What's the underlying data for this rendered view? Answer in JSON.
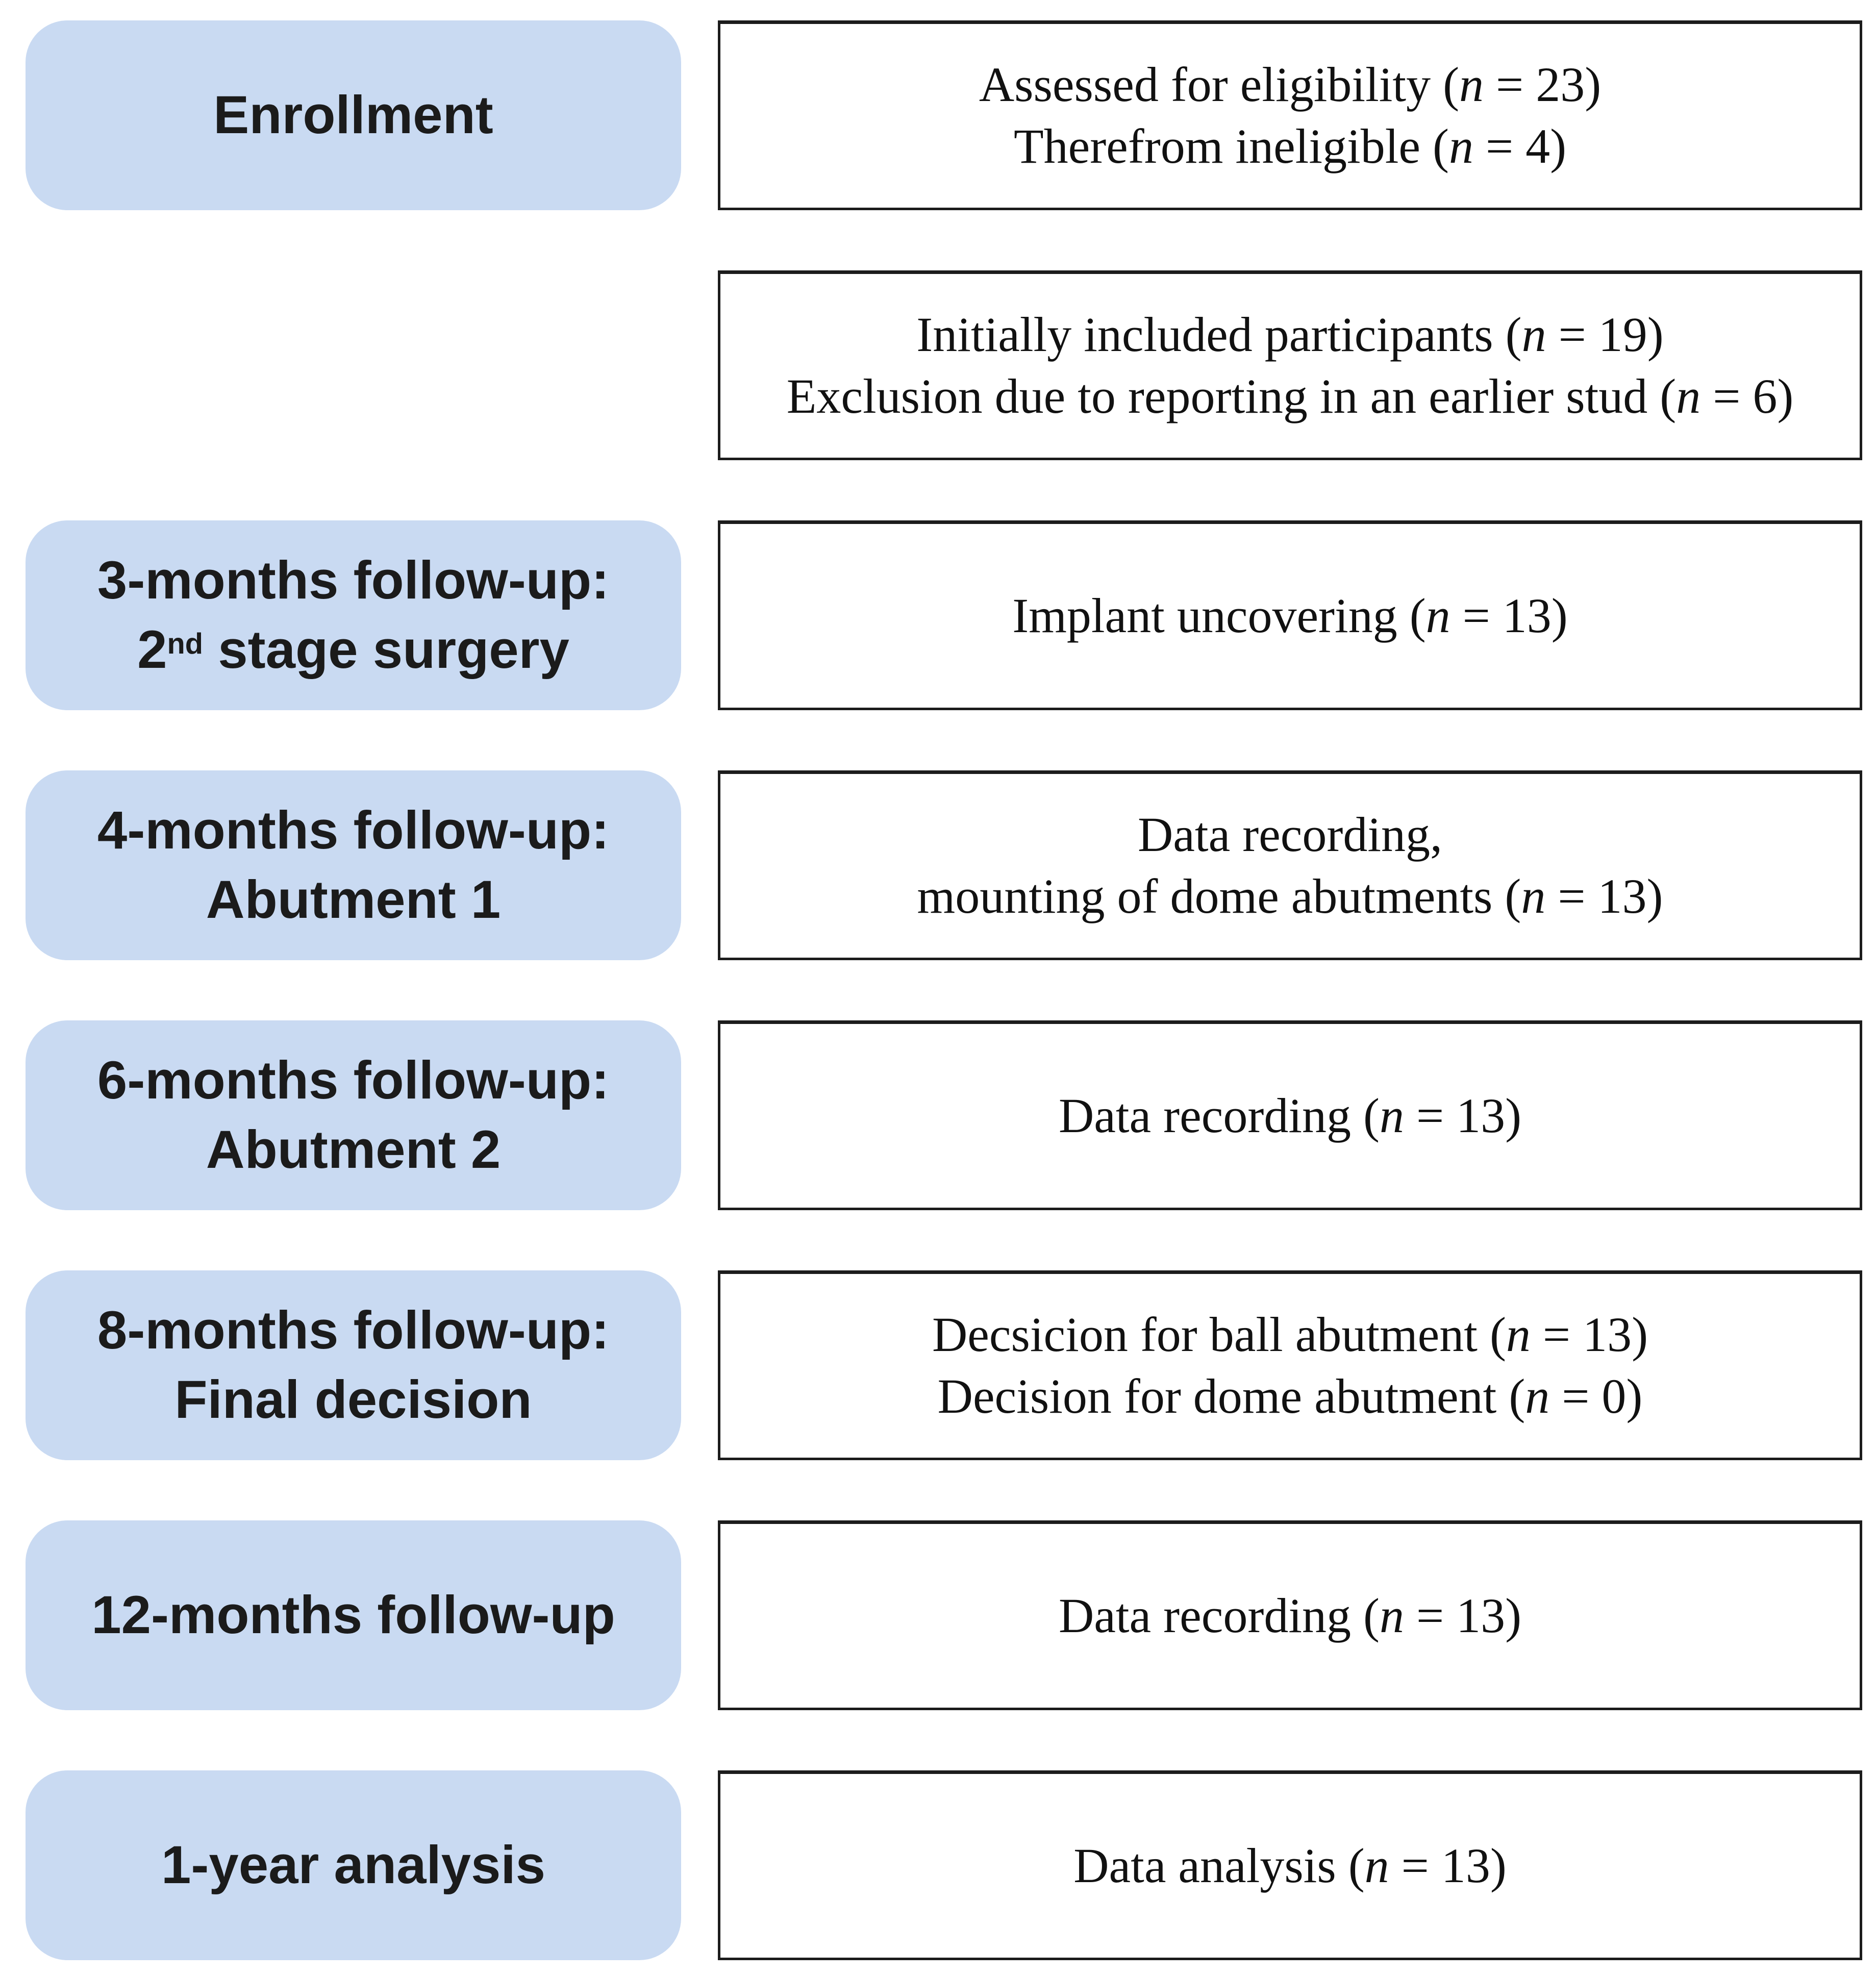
{
  "palette": {
    "page_bg": "#ffffff",
    "stage_fill": "#c9daf2",
    "stage_text": "#1b1b1b",
    "detail_bg": "#ffffff",
    "detail_border": "#1c1c1c",
    "detail_text": "#111111"
  },
  "rows": [
    {
      "name": "enrollment",
      "stage": {
        "lines": [
          [
            {
              "t": "Enrollment"
            }
          ]
        ]
      },
      "detail": {
        "lines": [
          [
            {
              "t": "Assessed for eligibility ("
            },
            {
              "t": "n",
              "i": true
            },
            {
              "t": " = 23)"
            }
          ],
          [
            {
              "t": "Therefrom ineligible ("
            },
            {
              "t": "n",
              "i": true
            },
            {
              "t": " = 4)"
            }
          ]
        ]
      }
    },
    {
      "name": "initial-inclusion",
      "stage": null,
      "detail": {
        "lines": [
          [
            {
              "t": "Initially included participants ("
            },
            {
              "t": "n",
              "i": true
            },
            {
              "t": " = 19)"
            }
          ],
          [
            {
              "t": "Exclusion due to reporting in an earlier stud ("
            },
            {
              "t": "n",
              "i": true
            },
            {
              "t": " = 6)"
            }
          ]
        ]
      }
    },
    {
      "name": "3-months-follow-up",
      "stage": {
        "lines": [
          [
            {
              "t": "3-months follow-up:"
            }
          ],
          [
            {
              "t": "2"
            },
            {
              "t": "nd",
              "sup": true
            },
            {
              "t": " stage surgery"
            }
          ]
        ]
      },
      "detail": {
        "lines": [
          [
            {
              "t": "Implant uncovering ("
            },
            {
              "t": "n",
              "i": true
            },
            {
              "t": " = 13)"
            }
          ]
        ]
      }
    },
    {
      "name": "4-months-follow-up",
      "stage": {
        "lines": [
          [
            {
              "t": "4-months follow-up:"
            }
          ],
          [
            {
              "t": "Abutment 1"
            }
          ]
        ]
      },
      "detail": {
        "lines": [
          [
            {
              "t": "Data recording,"
            }
          ],
          [
            {
              "t": "mounting of dome abutments ("
            },
            {
              "t": "n",
              "i": true
            },
            {
              "t": " = 13)"
            }
          ]
        ]
      }
    },
    {
      "name": "6-months-follow-up",
      "stage": {
        "lines": [
          [
            {
              "t": "6-months follow-up:"
            }
          ],
          [
            {
              "t": "Abutment 2"
            }
          ]
        ]
      },
      "detail": {
        "lines": [
          [
            {
              "t": "Data recording ("
            },
            {
              "t": "n",
              "i": true
            },
            {
              "t": " = 13)"
            }
          ]
        ]
      }
    },
    {
      "name": "8-months-follow-up",
      "stage": {
        "lines": [
          [
            {
              "t": "8-months follow-up:"
            }
          ],
          [
            {
              "t": "Final decision"
            }
          ]
        ]
      },
      "detail": {
        "lines": [
          [
            {
              "t": "Decsicion for ball abutment ("
            },
            {
              "t": "n",
              "i": true
            },
            {
              "t": " = 13)"
            }
          ],
          [
            {
              "t": "Decision for dome abutment ("
            },
            {
              "t": "n",
              "i": true
            },
            {
              "t": " = 0)"
            }
          ]
        ]
      }
    },
    {
      "name": "12-months-follow-up",
      "stage": {
        "lines": [
          [
            {
              "t": "12-months follow-up"
            }
          ]
        ]
      },
      "detail": {
        "lines": [
          [
            {
              "t": "Data recording ("
            },
            {
              "t": "n",
              "i": true
            },
            {
              "t": " = 13)"
            }
          ]
        ]
      }
    },
    {
      "name": "1-year-analysis",
      "stage": {
        "lines": [
          [
            {
              "t": "1-year analysis"
            }
          ]
        ]
      },
      "detail": {
        "lines": [
          [
            {
              "t": "Data analysis ("
            },
            {
              "t": "n",
              "i": true
            },
            {
              "t": " = 13)"
            }
          ]
        ]
      }
    }
  ]
}
